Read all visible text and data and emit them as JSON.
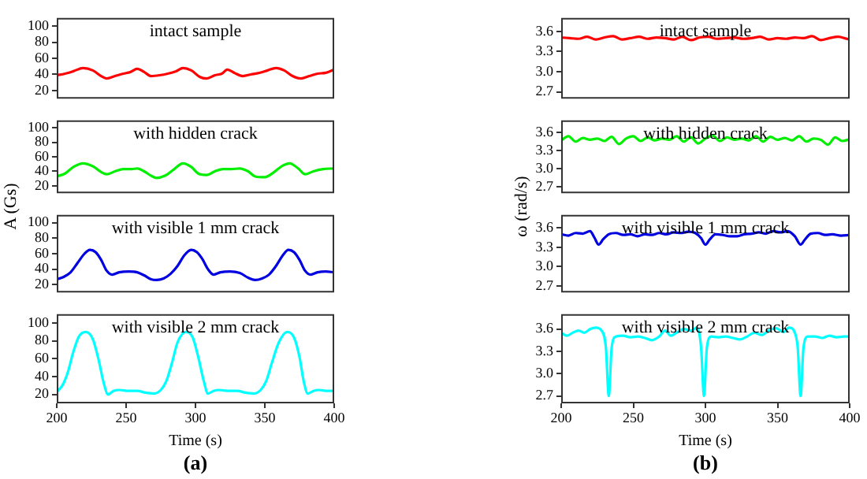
{
  "chart_data": [
    {
      "type": "line",
      "title": "intact sample",
      "ylabel": "A (Gs)",
      "tick_labels": "y",
      "xlim": [
        200,
        400
      ],
      "xticks": [
        200,
        250,
        300,
        350,
        400
      ],
      "ylim": [
        10,
        110
      ],
      "yticks": [
        20,
        40,
        60,
        80,
        100
      ],
      "color": "#ff0000",
      "x": [
        200,
        206,
        212,
        219,
        226,
        232,
        236,
        242,
        248,
        253,
        258,
        263,
        268,
        274,
        280,
        286,
        291,
        297,
        303,
        308,
        314,
        319,
        323,
        328,
        334,
        340,
        346,
        352,
        358,
        364,
        370,
        376,
        382,
        388,
        394,
        400
      ],
      "values": [
        39,
        41,
        44,
        48,
        45,
        38,
        35,
        38,
        41,
        43,
        47,
        43,
        38,
        39,
        41,
        44,
        48,
        45,
        37,
        35,
        39,
        41,
        46,
        42,
        38,
        40,
        42,
        45,
        48,
        45,
        38,
        35,
        38,
        41,
        42,
        46
      ]
    },
    {
      "type": "line",
      "title": "with hidden crack",
      "tick_labels": "y",
      "xlim": [
        200,
        400
      ],
      "xticks": [
        200,
        250,
        300,
        350,
        400
      ],
      "ylim": [
        10,
        110
      ],
      "yticks": [
        20,
        40,
        60,
        80,
        100
      ],
      "color": "#00ee00",
      "x": [
        200,
        206,
        212,
        219,
        226,
        232,
        236,
        242,
        248,
        254,
        258,
        263,
        268,
        272,
        278,
        284,
        291,
        297,
        302,
        308,
        314,
        320,
        326,
        332,
        338,
        343,
        350,
        356,
        363,
        368,
        374,
        379,
        385,
        392,
        400
      ],
      "values": [
        33,
        37,
        46,
        51,
        47,
        39,
        36,
        40,
        43,
        43,
        44,
        40,
        34,
        31,
        34,
        42,
        51,
        46,
        37,
        35,
        40,
        43,
        43,
        44,
        40,
        33,
        32,
        38,
        48,
        51,
        44,
        36,
        40,
        43,
        44
      ]
    },
    {
      "type": "line",
      "title": "with visible 1 mm crack",
      "tick_labels": "y",
      "xlim": [
        200,
        400
      ],
      "xticks": [
        200,
        250,
        300,
        350,
        400
      ],
      "ylim": [
        10,
        110
      ],
      "yticks": [
        20,
        40,
        60,
        80,
        100
      ],
      "color": "#0000e0",
      "x": [
        200,
        205,
        210,
        215,
        220,
        224,
        228,
        232,
        236,
        240,
        245,
        252,
        258,
        263,
        268,
        272,
        277,
        282,
        287,
        292,
        297,
        301,
        305,
        309,
        313,
        318,
        325,
        332,
        338,
        343,
        348,
        353,
        358,
        363,
        367,
        371,
        375,
        379,
        383,
        388,
        394,
        400
      ],
      "values": [
        27,
        30,
        36,
        48,
        60,
        65,
        62,
        52,
        38,
        33,
        36,
        37,
        36,
        32,
        27,
        26,
        28,
        34,
        44,
        58,
        65,
        62,
        53,
        40,
        33,
        36,
        37,
        35,
        29,
        26,
        28,
        33,
        44,
        58,
        65,
        62,
        52,
        38,
        33,
        36,
        37,
        36
      ]
    },
    {
      "type": "line",
      "title": "with visible 2 mm crack",
      "xlabel": "Time (s)",
      "annotations": [
        "(a)"
      ],
      "xlim": [
        200,
        400
      ],
      "xticks": [
        200,
        250,
        300,
        350,
        400
      ],
      "ylim": [
        10,
        110
      ],
      "yticks": [
        20,
        40,
        60,
        80,
        100
      ],
      "color": "#00ffff",
      "x": [
        200,
        204,
        208,
        212,
        216,
        221,
        226,
        230,
        234,
        237,
        241,
        245,
        252,
        258,
        264,
        270,
        275,
        279,
        283,
        287,
        293,
        298,
        302,
        306,
        309,
        313,
        317,
        324,
        330,
        336,
        342,
        347,
        351,
        355,
        360,
        366,
        371,
        375,
        378,
        381,
        385,
        389,
        395,
        400
      ],
      "values": [
        23,
        30,
        45,
        68,
        85,
        90,
        82,
        60,
        32,
        20,
        24,
        25,
        24,
        24,
        22,
        21,
        25,
        35,
        55,
        78,
        90,
        84,
        62,
        35,
        21,
        24,
        25,
        24,
        24,
        22,
        21,
        25,
        35,
        55,
        78,
        90,
        84,
        62,
        35,
        21,
        24,
        25,
        24,
        24
      ]
    },
    {
      "type": "line",
      "title": "intact sample",
      "ylabel": "ω (rad/s)",
      "tick_labels": "y",
      "xlim": [
        200,
        400
      ],
      "xticks": [
        200,
        250,
        300,
        350,
        400
      ],
      "ylim": [
        2.6,
        3.8
      ],
      "yticks": [
        {
          "value": 2.7,
          "label": "2.7"
        },
        {
          "value": 3.0,
          "label": "3.0"
        },
        {
          "value": 3.3,
          "label": "3.3"
        },
        {
          "value": 3.6,
          "label": "3.6"
        }
      ],
      "color": "#ff0000",
      "x": [
        200,
        206,
        212,
        218,
        224,
        230,
        236,
        242,
        248,
        254,
        260,
        266,
        272,
        278,
        284,
        290,
        296,
        302,
        308,
        314,
        320,
        326,
        332,
        338,
        344,
        350,
        356,
        362,
        368,
        374,
        380,
        386,
        392,
        398,
        400
      ],
      "values": [
        3.51,
        3.5,
        3.49,
        3.52,
        3.48,
        3.51,
        3.53,
        3.48,
        3.5,
        3.52,
        3.49,
        3.51,
        3.5,
        3.48,
        3.52,
        3.47,
        3.51,
        3.52,
        3.49,
        3.5,
        3.51,
        3.49,
        3.5,
        3.52,
        3.48,
        3.5,
        3.49,
        3.51,
        3.5,
        3.53,
        3.47,
        3.5,
        3.52,
        3.49,
        3.48
      ]
    },
    {
      "type": "line",
      "title": "with hidden crack",
      "tick_labels": "y",
      "xlim": [
        200,
        400
      ],
      "xticks": [
        200,
        250,
        300,
        350,
        400
      ],
      "ylim": [
        2.6,
        3.8
      ],
      "yticks": [
        {
          "value": 2.7,
          "label": "2.7"
        },
        {
          "value": 3.0,
          "label": "3.0"
        },
        {
          "value": 3.3,
          "label": "3.3"
        },
        {
          "value": 3.6,
          "label": "3.6"
        }
      ],
      "color": "#00ee00",
      "x": [
        200,
        205,
        210,
        215,
        220,
        225,
        230,
        235,
        240,
        245,
        250,
        255,
        260,
        265,
        270,
        275,
        280,
        285,
        290,
        295,
        300,
        305,
        310,
        315,
        320,
        325,
        330,
        335,
        340,
        345,
        350,
        355,
        360,
        365,
        370,
        375,
        380,
        385,
        390,
        395,
        400
      ],
      "values": [
        3.47,
        3.54,
        3.45,
        3.51,
        3.48,
        3.5,
        3.46,
        3.53,
        3.41,
        3.5,
        3.54,
        3.46,
        3.52,
        3.47,
        3.5,
        3.48,
        3.54,
        3.45,
        3.52,
        3.42,
        3.5,
        3.55,
        3.46,
        3.52,
        3.48,
        3.5,
        3.47,
        3.54,
        3.45,
        3.53,
        3.48,
        3.51,
        3.47,
        3.54,
        3.45,
        3.5,
        3.48,
        3.4,
        3.52,
        3.46,
        3.49
      ]
    },
    {
      "type": "line",
      "title": "with visible 1 mm crack",
      "tick_labels": "y",
      "xlim": [
        200,
        400
      ],
      "xticks": [
        200,
        250,
        300,
        350,
        400
      ],
      "ylim": [
        2.6,
        3.8
      ],
      "yticks": [
        {
          "value": 2.7,
          "label": "2.7"
        },
        {
          "value": 3.0,
          "label": "3.0"
        },
        {
          "value": 3.3,
          "label": "3.3"
        },
        {
          "value": 3.6,
          "label": "3.6"
        }
      ],
      "color": "#0000e0",
      "x": [
        200,
        205,
        210,
        215,
        220,
        223,
        226,
        229,
        233,
        238,
        243,
        248,
        253,
        258,
        263,
        268,
        273,
        278,
        283,
        288,
        293,
        297,
        300,
        303,
        307,
        312,
        317,
        322,
        327,
        332,
        337,
        342,
        347,
        352,
        357,
        362,
        366,
        369,
        373,
        378,
        383,
        388,
        394,
        400
      ],
      "values": [
        3.5,
        3.48,
        3.52,
        3.51,
        3.55,
        3.45,
        3.34,
        3.42,
        3.5,
        3.52,
        3.49,
        3.5,
        3.47,
        3.5,
        3.49,
        3.52,
        3.5,
        3.53,
        3.52,
        3.54,
        3.52,
        3.44,
        3.34,
        3.42,
        3.5,
        3.49,
        3.47,
        3.47,
        3.5,
        3.51,
        3.53,
        3.51,
        3.55,
        3.53,
        3.55,
        3.47,
        3.34,
        3.42,
        3.51,
        3.52,
        3.49,
        3.5,
        3.48,
        3.49
      ]
    },
    {
      "type": "line",
      "title": "with visible 2 mm crack",
      "xlabel": "Time (s)",
      "annotations": [
        "(b)"
      ],
      "xlim": [
        200,
        400
      ],
      "xticks": [
        200,
        250,
        300,
        350,
        400
      ],
      "ylim": [
        2.6,
        3.8
      ],
      "yticks": [
        {
          "value": 2.7,
          "label": "2.7"
        },
        {
          "value": 3.0,
          "label": "3.0"
        },
        {
          "value": 3.3,
          "label": "3.3"
        },
        {
          "value": 3.6,
          "label": "3.6"
        }
      ],
      "color": "#00ffff",
      "x": [
        200,
        204,
        208,
        212,
        216,
        220,
        224,
        228,
        231,
        233,
        235,
        238,
        243,
        248,
        253,
        258,
        263,
        268,
        272,
        276,
        280,
        285,
        290,
        294,
        297,
        299,
        301,
        304,
        309,
        314,
        319,
        324,
        329,
        334,
        339,
        344,
        349,
        354,
        358,
        362,
        364,
        366,
        368,
        371,
        376,
        381,
        386,
        391,
        396,
        400
      ],
      "values": [
        3.55,
        3.51,
        3.55,
        3.58,
        3.55,
        3.6,
        3.62,
        3.58,
        3.35,
        2.7,
        3.35,
        3.5,
        3.51,
        3.49,
        3.5,
        3.48,
        3.45,
        3.5,
        3.58,
        3.51,
        3.55,
        3.6,
        3.58,
        3.62,
        3.35,
        2.7,
        3.35,
        3.5,
        3.49,
        3.5,
        3.48,
        3.46,
        3.5,
        3.55,
        3.52,
        3.58,
        3.61,
        3.56,
        3.62,
        3.55,
        3.35,
        2.7,
        3.35,
        3.5,
        3.5,
        3.48,
        3.51,
        3.49,
        3.5,
        3.5
      ]
    }
  ]
}
